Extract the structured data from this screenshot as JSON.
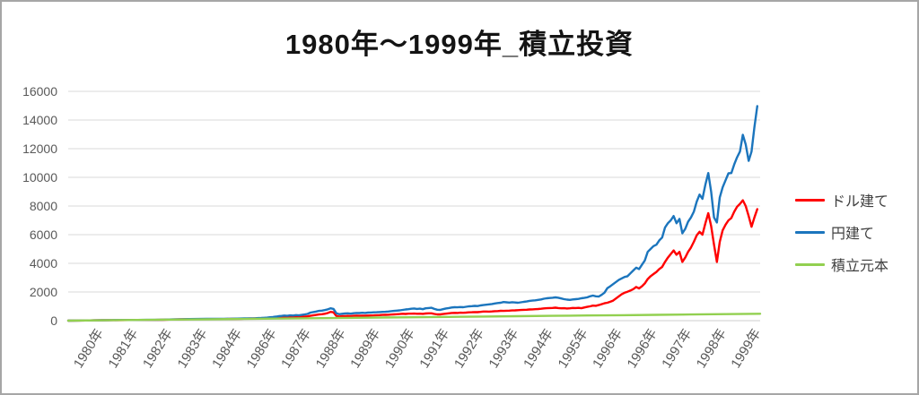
{
  "page": {
    "kind": "excel-style line chart image"
  },
  "chart_data": {
    "type": "line",
    "title": "1980年～1999年_積立投資",
    "xlabel": "",
    "ylabel": "",
    "grid": "horizontal",
    "legend": {
      "position": "right",
      "entries": [
        "ドル建て",
        "円建て",
        "積立元本"
      ]
    },
    "x_axis": {
      "range_years": [
        1980,
        2000
      ],
      "tick_labels": [
        "1980年",
        "1981年",
        "1982年",
        "1983年",
        "1984年",
        "1986年",
        "1987年",
        "1988年",
        "1989年",
        "1990年",
        "1991年",
        "1992年",
        "1993年",
        "1994年",
        "1995年",
        "1996年",
        "1996年",
        "1997年",
        "1998年",
        "1999年"
      ]
    },
    "y_axis": {
      "min": 0,
      "max": 16000,
      "tick_interval": 2000,
      "tick_labels": [
        "0",
        "2000",
        "4000",
        "6000",
        "8000",
        "10000",
        "12000",
        "14000",
        "16000"
      ]
    },
    "colors": {
      "gridline": "#d9d9d9",
      "axis_line": "#cfcfcf",
      "axis_text": "#595959",
      "title_text": "#141414",
      "frame_border": "#a6a6a6"
    },
    "series": [
      {
        "id": "usd",
        "name": "ドル建て",
        "color": "#ff0000",
        "pre_points": [
          [
            1980,
            2
          ],
          [
            1980.25,
            8
          ],
          [
            1980.5,
            14
          ],
          [
            1980.75,
            22
          ],
          [
            1981,
            30
          ],
          [
            1981.25,
            36
          ],
          [
            1981.5,
            40
          ],
          [
            1981.75,
            42
          ],
          [
            1982,
            48
          ],
          [
            1982.25,
            52
          ],
          [
            1982.5,
            50
          ],
          [
            1982.75,
            62
          ],
          [
            1983,
            80
          ],
          [
            1983.25,
            95
          ],
          [
            1983.5,
            105
          ],
          [
            1983.75,
            108
          ],
          [
            1984,
            112
          ],
          [
            1984.25,
            110
          ],
          [
            1984.5,
            114
          ],
          [
            1984.75,
            122
          ]
        ],
        "monthly_from_1985": [
          130,
          136,
          142,
          148,
          152,
          158,
          165,
          172,
          178,
          185,
          192,
          200,
          210,
          225,
          240,
          255,
          250,
          265,
          255,
          270,
          262,
          275,
          285,
          300,
          340,
          370,
          400,
          430,
          450,
          480,
          530,
          610,
          580,
          330,
          290,
          310,
          320,
          330,
          318,
          335,
          345,
          340,
          352,
          346,
          356,
          362,
          370,
          380,
          390,
          398,
          405,
          415,
          428,
          440,
          452,
          465,
          480,
          470,
          485,
          490,
          495,
          480,
          490,
          475,
          500,
          510,
          515,
          470,
          440,
          435,
          465,
          490,
          510,
          535,
          545,
          540,
          555,
          548,
          565,
          580,
          588,
          598,
          592,
          615,
          635,
          640,
          630,
          645,
          660,
          670,
          685,
          680,
          695,
          700,
          715,
          720,
          730,
          745,
          755,
          765,
          780,
          790,
          800,
          815,
          830,
          855,
          870,
          880,
          890,
          905,
          880,
          860,
          870,
          850,
          865,
          890,
          880,
          895,
          870,
          920,
          960,
          1000,
          1050,
          1040,
          1090,
          1150,
          1210,
          1250,
          1320,
          1400,
          1550,
          1700,
          1850,
          1950,
          2020,
          2100,
          2200,
          2350,
          2250,
          2400,
          2600,
          2900,
          3100,
          3250,
          3400,
          3600,
          3750,
          4100,
          4400,
          4650,
          4900,
          4600,
          4800,
          4100,
          4400,
          4800,
          5100,
          5500,
          5950,
          6200,
          6000,
          6800,
          7500,
          6600,
          5300,
          4100,
          5500,
          6300,
          6700,
          7000,
          7160,
          7600,
          7950,
          8150,
          8400,
          8000,
          7300,
          6550,
          7200,
          7780
        ]
      },
      {
        "id": "jpy",
        "name": "円建て",
        "color": "#1b75bd",
        "pre_points": [
          [
            1980,
            2
          ],
          [
            1980.25,
            8
          ],
          [
            1980.5,
            15
          ],
          [
            1980.75,
            24
          ],
          [
            1981,
            32
          ],
          [
            1981.25,
            38
          ],
          [
            1981.5,
            44
          ],
          [
            1981.75,
            46
          ],
          [
            1982,
            52
          ],
          [
            1982.25,
            56
          ],
          [
            1982.5,
            54
          ],
          [
            1982.75,
            66
          ],
          [
            1983,
            85
          ],
          [
            1983.25,
            100
          ],
          [
            1983.5,
            112
          ],
          [
            1983.75,
            118
          ],
          [
            1984,
            124
          ],
          [
            1984.25,
            122
          ],
          [
            1984.5,
            128
          ],
          [
            1984.75,
            140
          ]
        ],
        "monthly_from_1985": [
          150,
          155,
          160,
          158,
          164,
          170,
          180,
          188,
          198,
          212,
          235,
          258,
          280,
          310,
          330,
          355,
          340,
          370,
          355,
          385,
          370,
          400,
          430,
          470,
          560,
          600,
          640,
          680,
          700,
          740,
          790,
          860,
          820,
          520,
          450,
          480,
          500,
          510,
          490,
          520,
          540,
          530,
          550,
          540,
          560,
          570,
          580,
          590,
          600,
          610,
          620,
          640,
          660,
          680,
          700,
          720,
          750,
          780,
          800,
          830,
          850,
          820,
          840,
          800,
          860,
          880,
          900,
          820,
          760,
          750,
          800,
          850,
          880,
          920,
          940,
          930,
          950,
          940,
          970,
          1000,
          1010,
          1030,
          1020,
          1060,
          1090,
          1110,
          1140,
          1160,
          1200,
          1230,
          1250,
          1300,
          1280,
          1260,
          1290,
          1270,
          1250,
          1280,
          1310,
          1340,
          1380,
          1400,
          1420,
          1450,
          1480,
          1530,
          1560,
          1580,
          1600,
          1625,
          1600,
          1550,
          1500,
          1470,
          1450,
          1480,
          1500,
          1520,
          1560,
          1590,
          1625,
          1700,
          1750,
          1700,
          1680,
          1800,
          1950,
          2260,
          2400,
          2550,
          2700,
          2850,
          2950,
          3050,
          3100,
          3300,
          3500,
          3700,
          3600,
          3900,
          4200,
          4800,
          5000,
          5200,
          5300,
          5600,
          5800,
          6500,
          6800,
          7000,
          7300,
          6800,
          7100,
          6100,
          6400,
          6900,
          7200,
          7600,
          8300,
          8800,
          8500,
          9500,
          10300,
          9000,
          7200,
          6850,
          8600,
          9300,
          9800,
          10280,
          10300,
          10900,
          11400,
          11800,
          12970,
          12300,
          11150,
          11800,
          13500,
          14970
        ]
      },
      {
        "id": "principal",
        "name": "積立元本",
        "color": "#92d050",
        "yearly_points": [
          [
            1980,
            0
          ],
          [
            1981,
            24
          ],
          [
            1982,
            48
          ],
          [
            1983,
            72
          ],
          [
            1984,
            96
          ],
          [
            1985,
            120
          ],
          [
            1986,
            144
          ],
          [
            1987,
            168
          ],
          [
            1988,
            192
          ],
          [
            1989,
            216
          ],
          [
            1990,
            240
          ],
          [
            1991,
            264
          ],
          [
            1992,
            288
          ],
          [
            1993,
            312
          ],
          [
            1994,
            336
          ],
          [
            1995,
            360
          ],
          [
            1996,
            384
          ],
          [
            1997,
            408
          ],
          [
            1998,
            432
          ],
          [
            1999,
            456
          ],
          [
            2000,
            480
          ]
        ]
      }
    ]
  }
}
